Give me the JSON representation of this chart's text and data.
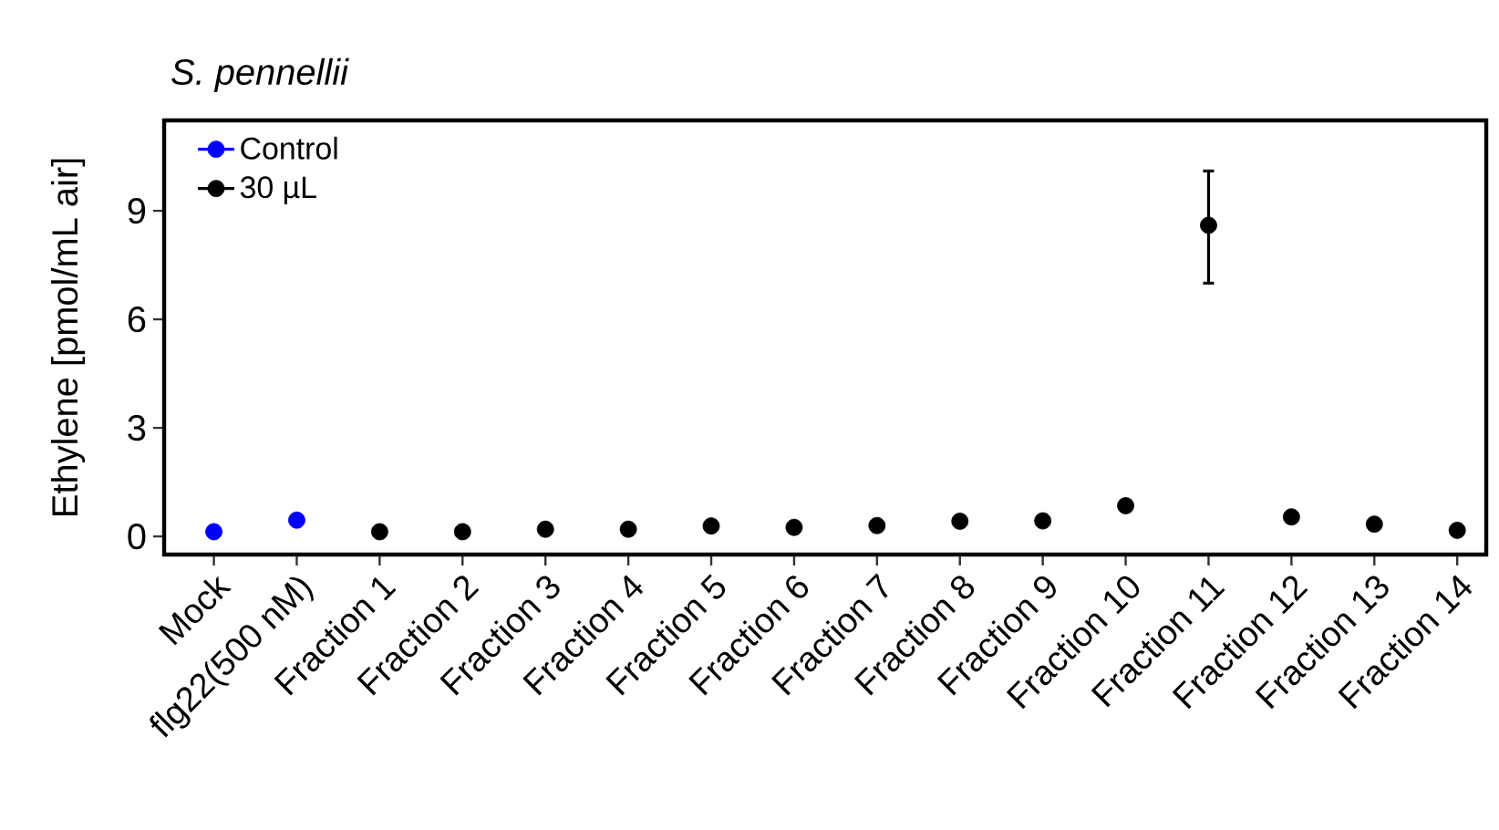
{
  "chart_data": {
    "type": "scatter",
    "title": "S. pennellii",
    "ylabel": "Ethylene [pmol/mL air]",
    "categories": [
      "Mock",
      "flg22(500 nM)",
      "Fraction 1",
      "Fraction 2",
      "Fraction 3",
      "Fraction 4",
      "Fraction 5",
      "Fraction 6",
      "Fraction 7",
      "Fraction 8",
      "Fraction 9",
      "Fraction 10",
      "Fraction 11",
      "Fraction 12",
      "Fraction 13",
      "Fraction 14"
    ],
    "series": [
      {
        "name": "Control",
        "color": "#0000ff",
        "values": [
          0.13,
          0.45,
          null,
          null,
          null,
          null,
          null,
          null,
          null,
          null,
          null,
          null,
          null,
          null,
          null,
          null
        ]
      },
      {
        "name": "30 µL",
        "color": "#000000",
        "values": [
          null,
          null,
          0.13,
          0.13,
          0.2,
          0.2,
          0.29,
          0.25,
          0.3,
          0.42,
          0.43,
          0.85,
          8.6,
          0.54,
          0.34,
          0.17
        ],
        "errors": [
          null,
          null,
          null,
          null,
          null,
          null,
          null,
          null,
          null,
          null,
          null,
          null,
          [
            7.0,
            10.1
          ],
          null,
          null,
          null
        ]
      }
    ],
    "ylim": [
      -0.5,
      11.5
    ],
    "yticks": [
      0,
      3,
      6,
      9
    ],
    "grid": false,
    "legend": "top left",
    "marker": "circle"
  }
}
